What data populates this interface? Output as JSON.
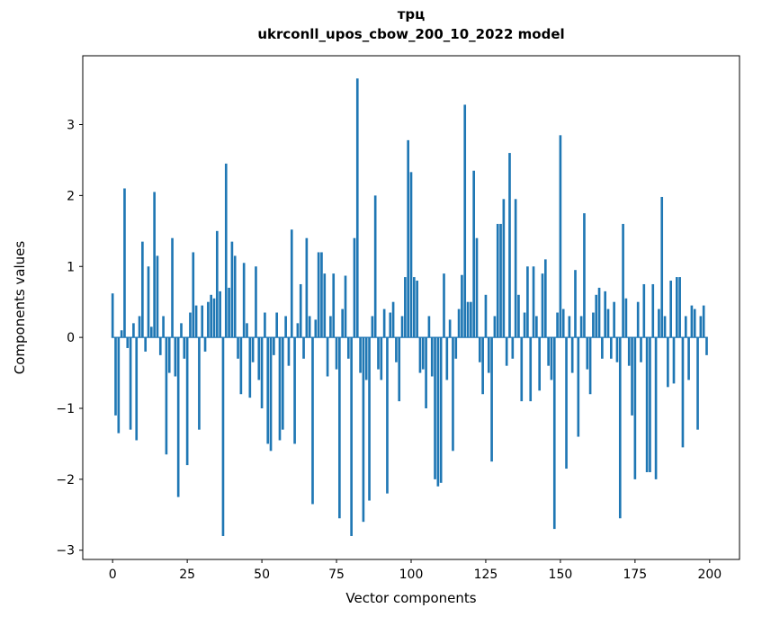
{
  "title_line1": "трц",
  "title_line2": "ukrconll_upos_cbow_200_10_2022 model",
  "chart_data": {
    "type": "bar",
    "title": "трц — ukrconll_upos_cbow_200_10_2022 model",
    "xlabel": "Vector components",
    "ylabel": "Components values",
    "xlim": [
      -10,
      210
    ],
    "ylim": [
      -3.13,
      3.97
    ],
    "xticks": [
      0,
      25,
      50,
      75,
      100,
      125,
      150,
      175,
      200
    ],
    "yticks": [
      -3,
      -2,
      -1,
      0,
      1,
      2,
      3
    ],
    "grid": false,
    "legend": null,
    "bar_color": "#1f77b4",
    "bar_width": 0.8,
    "x_start": 0,
    "values": [
      0.62,
      -1.1,
      -1.35,
      0.1,
      2.1,
      -0.15,
      -1.3,
      0.2,
      -1.45,
      0.3,
      1.35,
      -0.2,
      1.0,
      0.15,
      2.05,
      1.15,
      -0.25,
      0.3,
      -1.65,
      -0.5,
      1.4,
      -0.55,
      -2.25,
      0.2,
      -0.3,
      -1.8,
      0.35,
      1.2,
      0.45,
      -1.3,
      0.45,
      -0.2,
      0.5,
      0.6,
      0.55,
      1.5,
      0.65,
      -2.8,
      2.45,
      0.7,
      1.35,
      1.15,
      -0.3,
      -0.8,
      1.05,
      0.2,
      -0.85,
      -0.35,
      1.0,
      -0.6,
      -1.0,
      0.35,
      -1.5,
      -1.6,
      -0.25,
      0.35,
      -1.45,
      -1.3,
      0.3,
      -0.4,
      1.52,
      -1.5,
      0.2,
      0.75,
      -0.3,
      1.4,
      0.3,
      -2.35,
      0.25,
      1.2,
      1.2,
      0.9,
      -0.55,
      0.3,
      0.9,
      -0.45,
      -2.55,
      0.4,
      0.87,
      -0.3,
      -2.8,
      1.4,
      3.65,
      -0.5,
      -2.6,
      -0.6,
      -2.3,
      0.3,
      2.0,
      -0.45,
      -0.6,
      0.4,
      -2.2,
      0.35,
      0.5,
      -0.35,
      -0.9,
      0.3,
      0.85,
      2.78,
      2.33,
      0.85,
      0.8,
      -0.5,
      -0.45,
      -1.0,
      0.3,
      -0.55,
      -2.0,
      -2.1,
      -2.05,
      0.9,
      -0.6,
      0.25,
      -1.6,
      -0.3,
      0.4,
      0.88,
      3.28,
      0.5,
      0.5,
      2.35,
      1.4,
      -0.35,
      -0.8,
      0.6,
      -0.5,
      -1.75,
      0.3,
      1.6,
      1.6,
      1.95,
      -0.4,
      2.6,
      -0.3,
      1.95,
      0.6,
      -0.9,
      0.35,
      1.0,
      -0.9,
      1.0,
      0.3,
      -0.75,
      0.9,
      1.1,
      -0.4,
      -0.6,
      -2.7,
      0.35,
      2.85,
      0.4,
      -1.85,
      0.3,
      -0.5,
      0.95,
      -1.4,
      0.3,
      1.75,
      -0.45,
      -0.8,
      0.35,
      0.6,
      0.7,
      -0.3,
      0.65,
      0.4,
      -0.3,
      0.5,
      -0.35,
      -2.55,
      1.6,
      0.55,
      -0.4,
      -1.1,
      -2.0,
      0.5,
      -0.35,
      0.75,
      -1.9,
      -1.9,
      0.75,
      -2.0,
      0.4,
      1.98,
      0.3,
      -0.7,
      0.8,
      -0.65,
      0.85,
      0.85,
      -1.55,
      0.3,
      -0.6,
      0.45,
      0.4,
      -1.3,
      0.3,
      0.45,
      -0.25
    ]
  }
}
